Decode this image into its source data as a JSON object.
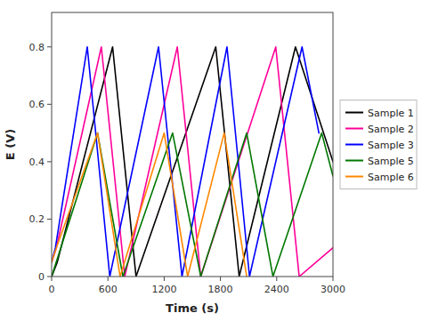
{
  "chart_data": {
    "type": "line",
    "x_label": "Time (s)",
    "y_label": "E (V)",
    "xlim": [
      0,
      3000
    ],
    "ylim": [
      0.0,
      0.92
    ],
    "xticks": [
      0,
      600,
      1200,
      1800,
      2400,
      3000
    ],
    "yticks": [
      0.0,
      0.2,
      0.4,
      0.6,
      0.8
    ],
    "grid": false,
    "legend": "right",
    "series": [
      {
        "name": "Sample 1",
        "color": "#000000",
        "x": [
          0,
          60,
          650,
          900,
          1750,
          2000,
          2600,
          3000
        ],
        "values": [
          0.0,
          0.05,
          0.8,
          0.0,
          0.8,
          0.0,
          0.8,
          0.4
        ]
      },
      {
        "name": "Sample 2",
        "color": "#ff0099",
        "x": [
          0,
          50,
          530,
          780,
          1340,
          1590,
          2390,
          2640,
          3000
        ],
        "values": [
          0.05,
          0.1,
          0.8,
          0.0,
          0.8,
          0.0,
          0.8,
          0.0,
          0.1
        ]
      },
      {
        "name": "Sample 3",
        "color": "#0000ff",
        "x": [
          0,
          40,
          380,
          620,
          1140,
          1390,
          1870,
          2110,
          2670,
          2850
        ],
        "values": [
          0.05,
          0.1,
          0.8,
          0.0,
          0.8,
          0.0,
          0.8,
          0.0,
          0.8,
          0.5
        ]
      },
      {
        "name": "Sample 5",
        "color": "#007700",
        "x": [
          0,
          490,
          760,
          1290,
          1590,
          2080,
          2360,
          2880,
          3000
        ],
        "values": [
          0.0,
          0.5,
          0.0,
          0.5,
          0.0,
          0.5,
          0.0,
          0.5,
          0.35
        ]
      },
      {
        "name": "Sample 6",
        "color": "#ff8800",
        "x": [
          0,
          50,
          490,
          730,
          1200,
          1450,
          1840,
          2080
        ],
        "values": [
          0.05,
          0.1,
          0.5,
          0.0,
          0.5,
          0.0,
          0.5,
          0.0
        ]
      }
    ]
  }
}
